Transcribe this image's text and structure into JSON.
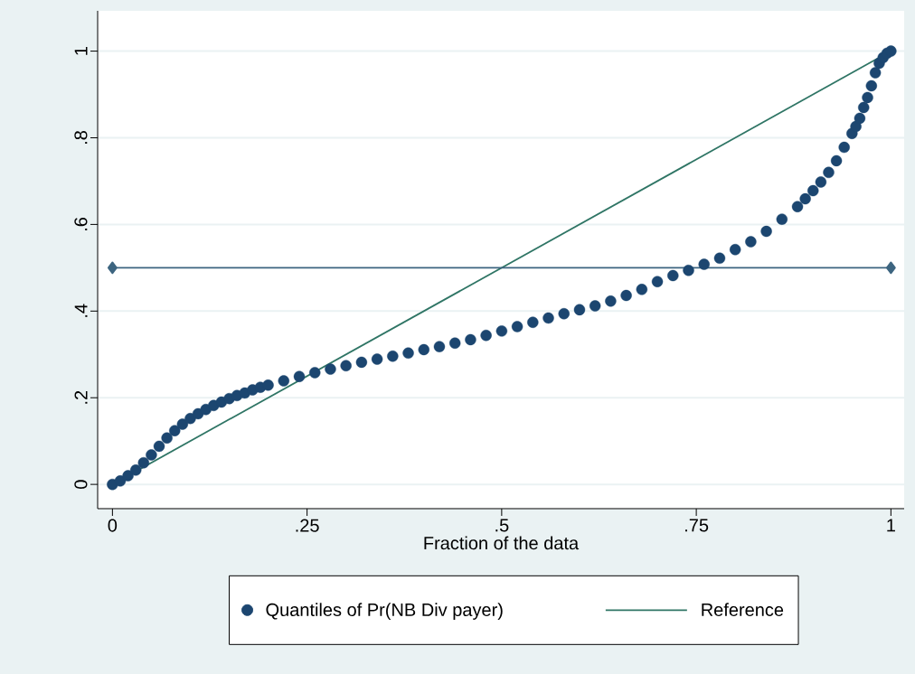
{
  "chart_data": {
    "type": "scatter",
    "xlabel": "Fraction of the data",
    "xlim": [
      -0.019,
      1.017
    ],
    "ylim": [
      -0.056,
      1.093
    ],
    "xticks": [
      {
        "value": 0,
        "label": "0"
      },
      {
        "value": 0.25,
        "label": ".25"
      },
      {
        "value": 0.5,
        "label": ".5"
      },
      {
        "value": 0.75,
        "label": ".75"
      },
      {
        "value": 1,
        "label": "1"
      }
    ],
    "yticks": [
      {
        "value": 0,
        "label": "0"
      },
      {
        "value": 0.2,
        "label": ".2"
      },
      {
        "value": 0.4,
        "label": ".4"
      },
      {
        "value": 0.6,
        "label": ".6"
      },
      {
        "value": 0.8,
        "label": ".8"
      },
      {
        "value": 1,
        "label": "1"
      }
    ],
    "grid": "y",
    "legend": "bottom",
    "series": [
      {
        "name": "Quantiles of Pr(NB Div payer)",
        "type": "scatter",
        "marker": "circle",
        "color": "#1c4670",
        "x": [
          0,
          0.01,
          0.02,
          0.03,
          0.04,
          0.05,
          0.06,
          0.07,
          0.08,
          0.09,
          0.1,
          0.11,
          0.12,
          0.13,
          0.14,
          0.15,
          0.16,
          0.17,
          0.18,
          0.19,
          0.2,
          0.22,
          0.24,
          0.26,
          0.28,
          0.3,
          0.32,
          0.34,
          0.36,
          0.38,
          0.4,
          0.42,
          0.44,
          0.46,
          0.48,
          0.5,
          0.52,
          0.54,
          0.56,
          0.58,
          0.6,
          0.62,
          0.64,
          0.66,
          0.68,
          0.7,
          0.72,
          0.74,
          0.76,
          0.78,
          0.8,
          0.82,
          0.84,
          0.86,
          0.88,
          0.89,
          0.9,
          0.91,
          0.92,
          0.93,
          0.94,
          0.95,
          0.955,
          0.96,
          0.965,
          0.97,
          0.975,
          0.98,
          0.985,
          0.99,
          0.995,
          1
        ],
        "values": [
          0,
          0.008,
          0.02,
          0.033,
          0.05,
          0.068,
          0.088,
          0.107,
          0.124,
          0.139,
          0.152,
          0.163,
          0.173,
          0.182,
          0.19,
          0.198,
          0.205,
          0.211,
          0.218,
          0.224,
          0.229,
          0.239,
          0.249,
          0.258,
          0.266,
          0.274,
          0.282,
          0.289,
          0.296,
          0.303,
          0.311,
          0.318,
          0.326,
          0.334,
          0.344,
          0.354,
          0.364,
          0.374,
          0.384,
          0.394,
          0.403,
          0.412,
          0.423,
          0.436,
          0.45,
          0.468,
          0.482,
          0.494,
          0.508,
          0.522,
          0.542,
          0.56,
          0.584,
          0.612,
          0.641,
          0.659,
          0.678,
          0.698,
          0.72,
          0.747,
          0.778,
          0.81,
          0.826,
          0.845,
          0.87,
          0.893,
          0.92,
          0.95,
          0.972,
          0.985,
          0.995,
          1
        ]
      },
      {
        "name": "Reference",
        "type": "line",
        "marker": "none",
        "color": "#2f7565",
        "x": [
          0,
          1
        ],
        "values": [
          0,
          1
        ]
      },
      {
        "type": "line",
        "marker": "diamond",
        "color": "#3d6580",
        "x": [
          0,
          1
        ],
        "values": [
          0.5,
          0.5
        ]
      }
    ]
  }
}
